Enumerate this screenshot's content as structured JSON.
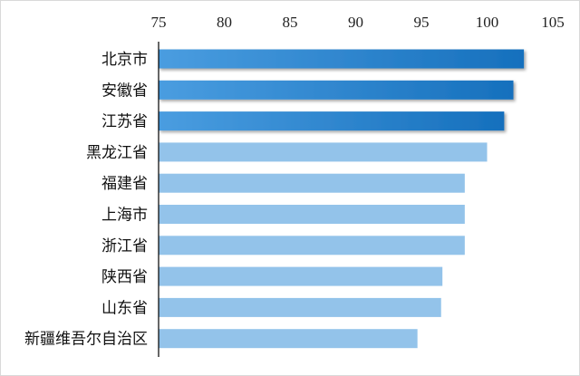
{
  "chart_data": {
    "type": "bar",
    "orientation": "horizontal",
    "x_axis_position": "top",
    "categories": [
      "北京市",
      "安徽省",
      "江苏省",
      "黑龙江省",
      "福建省",
      "上海市",
      "浙江省",
      "陕西省",
      "山东省",
      "新疆维吾尔自治区"
    ],
    "values": [
      102.8,
      102.0,
      101.3,
      100.0,
      98.3,
      98.3,
      98.3,
      96.6,
      96.5,
      94.7
    ],
    "highlight": [
      true,
      true,
      true,
      false,
      false,
      false,
      false,
      false,
      false,
      false
    ],
    "xlim": [
      75,
      105
    ],
    "xticks": [
      "75",
      "80",
      "85",
      "90",
      "95",
      "100",
      "105"
    ],
    "grid": false,
    "title": "",
    "xlabel": "",
    "ylabel": "",
    "colors": {
      "highlight_start": "#4a9de0",
      "highlight_end": "#1670bd",
      "normal": "#93c3ea",
      "axis": "#000000",
      "frame": "#d9d9d9"
    }
  }
}
